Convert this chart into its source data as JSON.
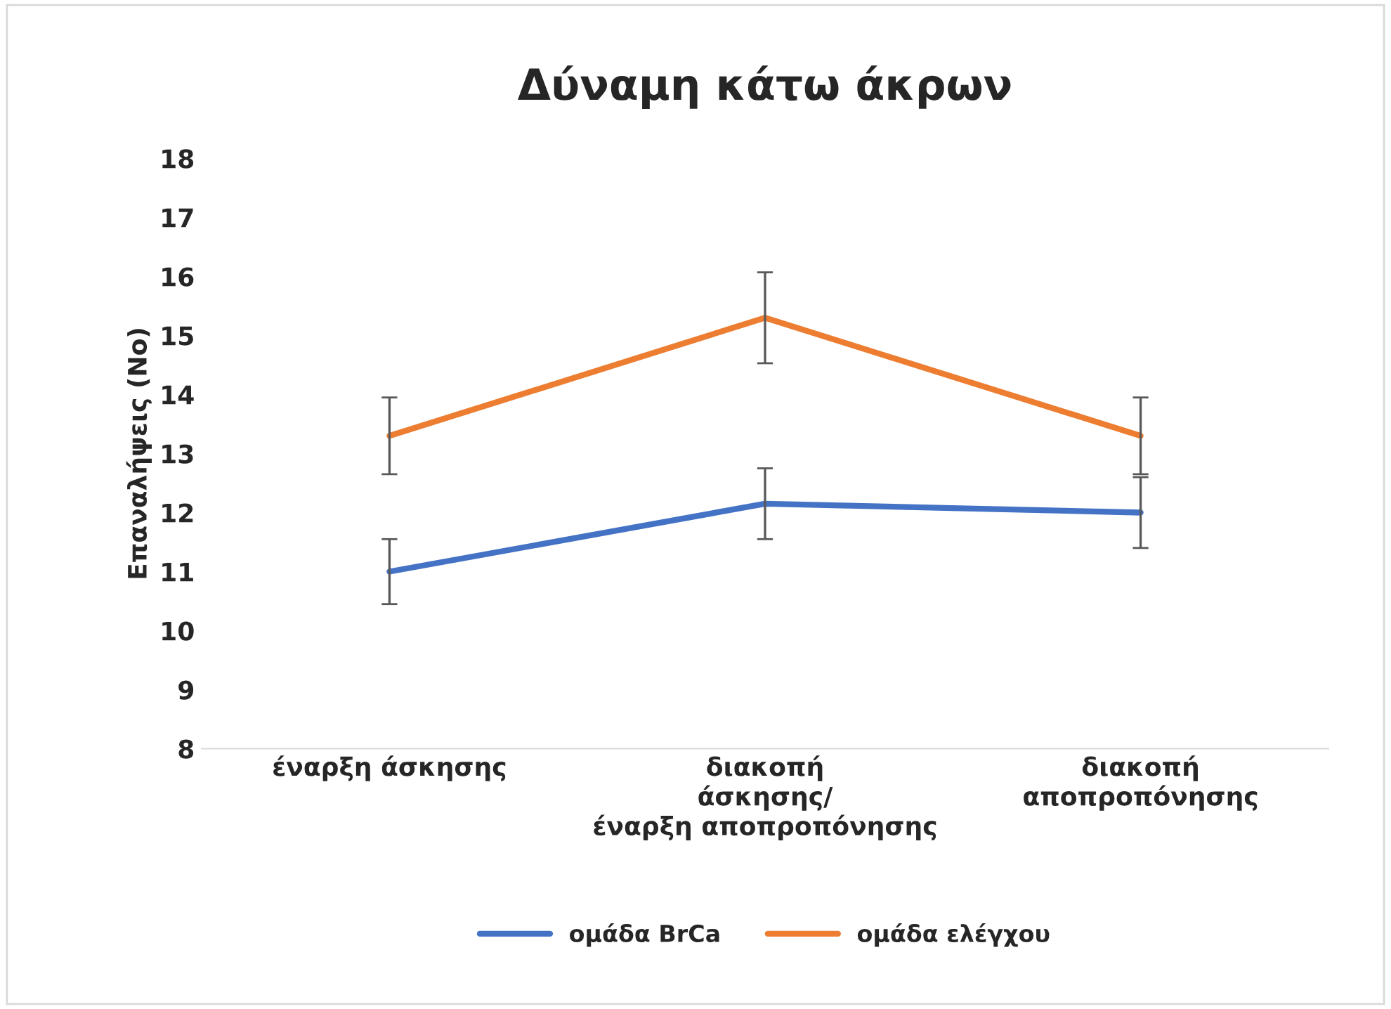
{
  "chart_data": {
    "type": "line",
    "title": "Δύναμη κάτω άκρων",
    "ylabel": "Επαναλήψεις (Νο)",
    "categories": [
      "έναρξη άσκησης",
      "διακοπή άσκησης/έναρξη αποπροπόνησης",
      "διακοπή αποπροπόνησης"
    ],
    "series": [
      {
        "name": "ομάδα BrCa",
        "color": "#4472c4",
        "values": [
          11.0,
          12.15,
          12.0
        ],
        "errors": [
          0.55,
          0.6,
          0.6
        ]
      },
      {
        "name": "ομάδα ελέγχου",
        "color": "#ed7d31",
        "values": [
          13.3,
          15.3,
          13.3
        ],
        "errors": [
          0.65,
          0.77,
          0.65
        ]
      }
    ],
    "ylim": [
      8,
      18
    ],
    "yticks": [
      8,
      9,
      10,
      11,
      12,
      13,
      14,
      15,
      16,
      17,
      18
    ],
    "grid": false,
    "legend": "bottom",
    "marker": "none",
    "line_style": "solid"
  }
}
